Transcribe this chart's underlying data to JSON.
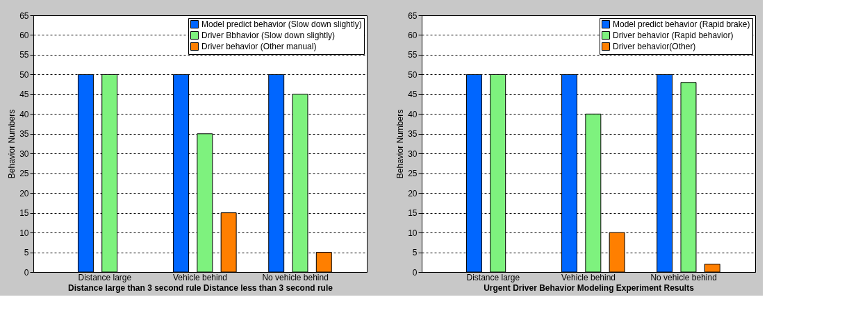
{
  "chart_data": [
    {
      "type": "bar",
      "xlabel": "Distance large than 3 second rule     Distance less than 3 second rule",
      "ylabel": "Behavior Numbers",
      "categories": [
        "Distance large",
        "Vehicle behind",
        "No vehicle behind"
      ],
      "series": [
        {
          "name": "Model predict behavior (Slow down slightly)",
          "color": "#0066ff",
          "values": [
            50,
            50,
            50
          ]
        },
        {
          "name": "Driver Bbhavior (Slow down slightly)",
          "color": "#7ef27e",
          "values": [
            50,
            35,
            45
          ]
        },
        {
          "name": "Driver behavior (Other manual)",
          "color": "#ff7f00",
          "values": [
            null,
            15,
            5
          ]
        }
      ],
      "ylim": [
        0,
        65
      ],
      "yticks": [
        0,
        5,
        10,
        15,
        20,
        25,
        30,
        35,
        40,
        45,
        50,
        55,
        60,
        65
      ],
      "grid": "y",
      "legend": "top right"
    },
    {
      "type": "bar",
      "xlabel": "Urgent Driver Behavior Modeling Experiment Results",
      "ylabel": "Behavior Numbers",
      "categories": [
        "Distance large",
        "Vehicle behind",
        "No vehicle behind"
      ],
      "series": [
        {
          "name": "Model predict behavior (Rapid brake)",
          "color": "#0066ff",
          "values": [
            50,
            50,
            50
          ]
        },
        {
          "name": "Driver behavior (Rapid behavior)",
          "color": "#7ef27e",
          "values": [
            50,
            40,
            48
          ]
        },
        {
          "name": "Driver behavior(Other)",
          "color": "#ff7f00",
          "values": [
            null,
            10,
            2
          ]
        }
      ],
      "ylim": [
        0,
        65
      ],
      "yticks": [
        0,
        5,
        10,
        15,
        20,
        25,
        30,
        35,
        40,
        45,
        50,
        55,
        60,
        65
      ],
      "grid": "y",
      "legend": "top right"
    }
  ]
}
